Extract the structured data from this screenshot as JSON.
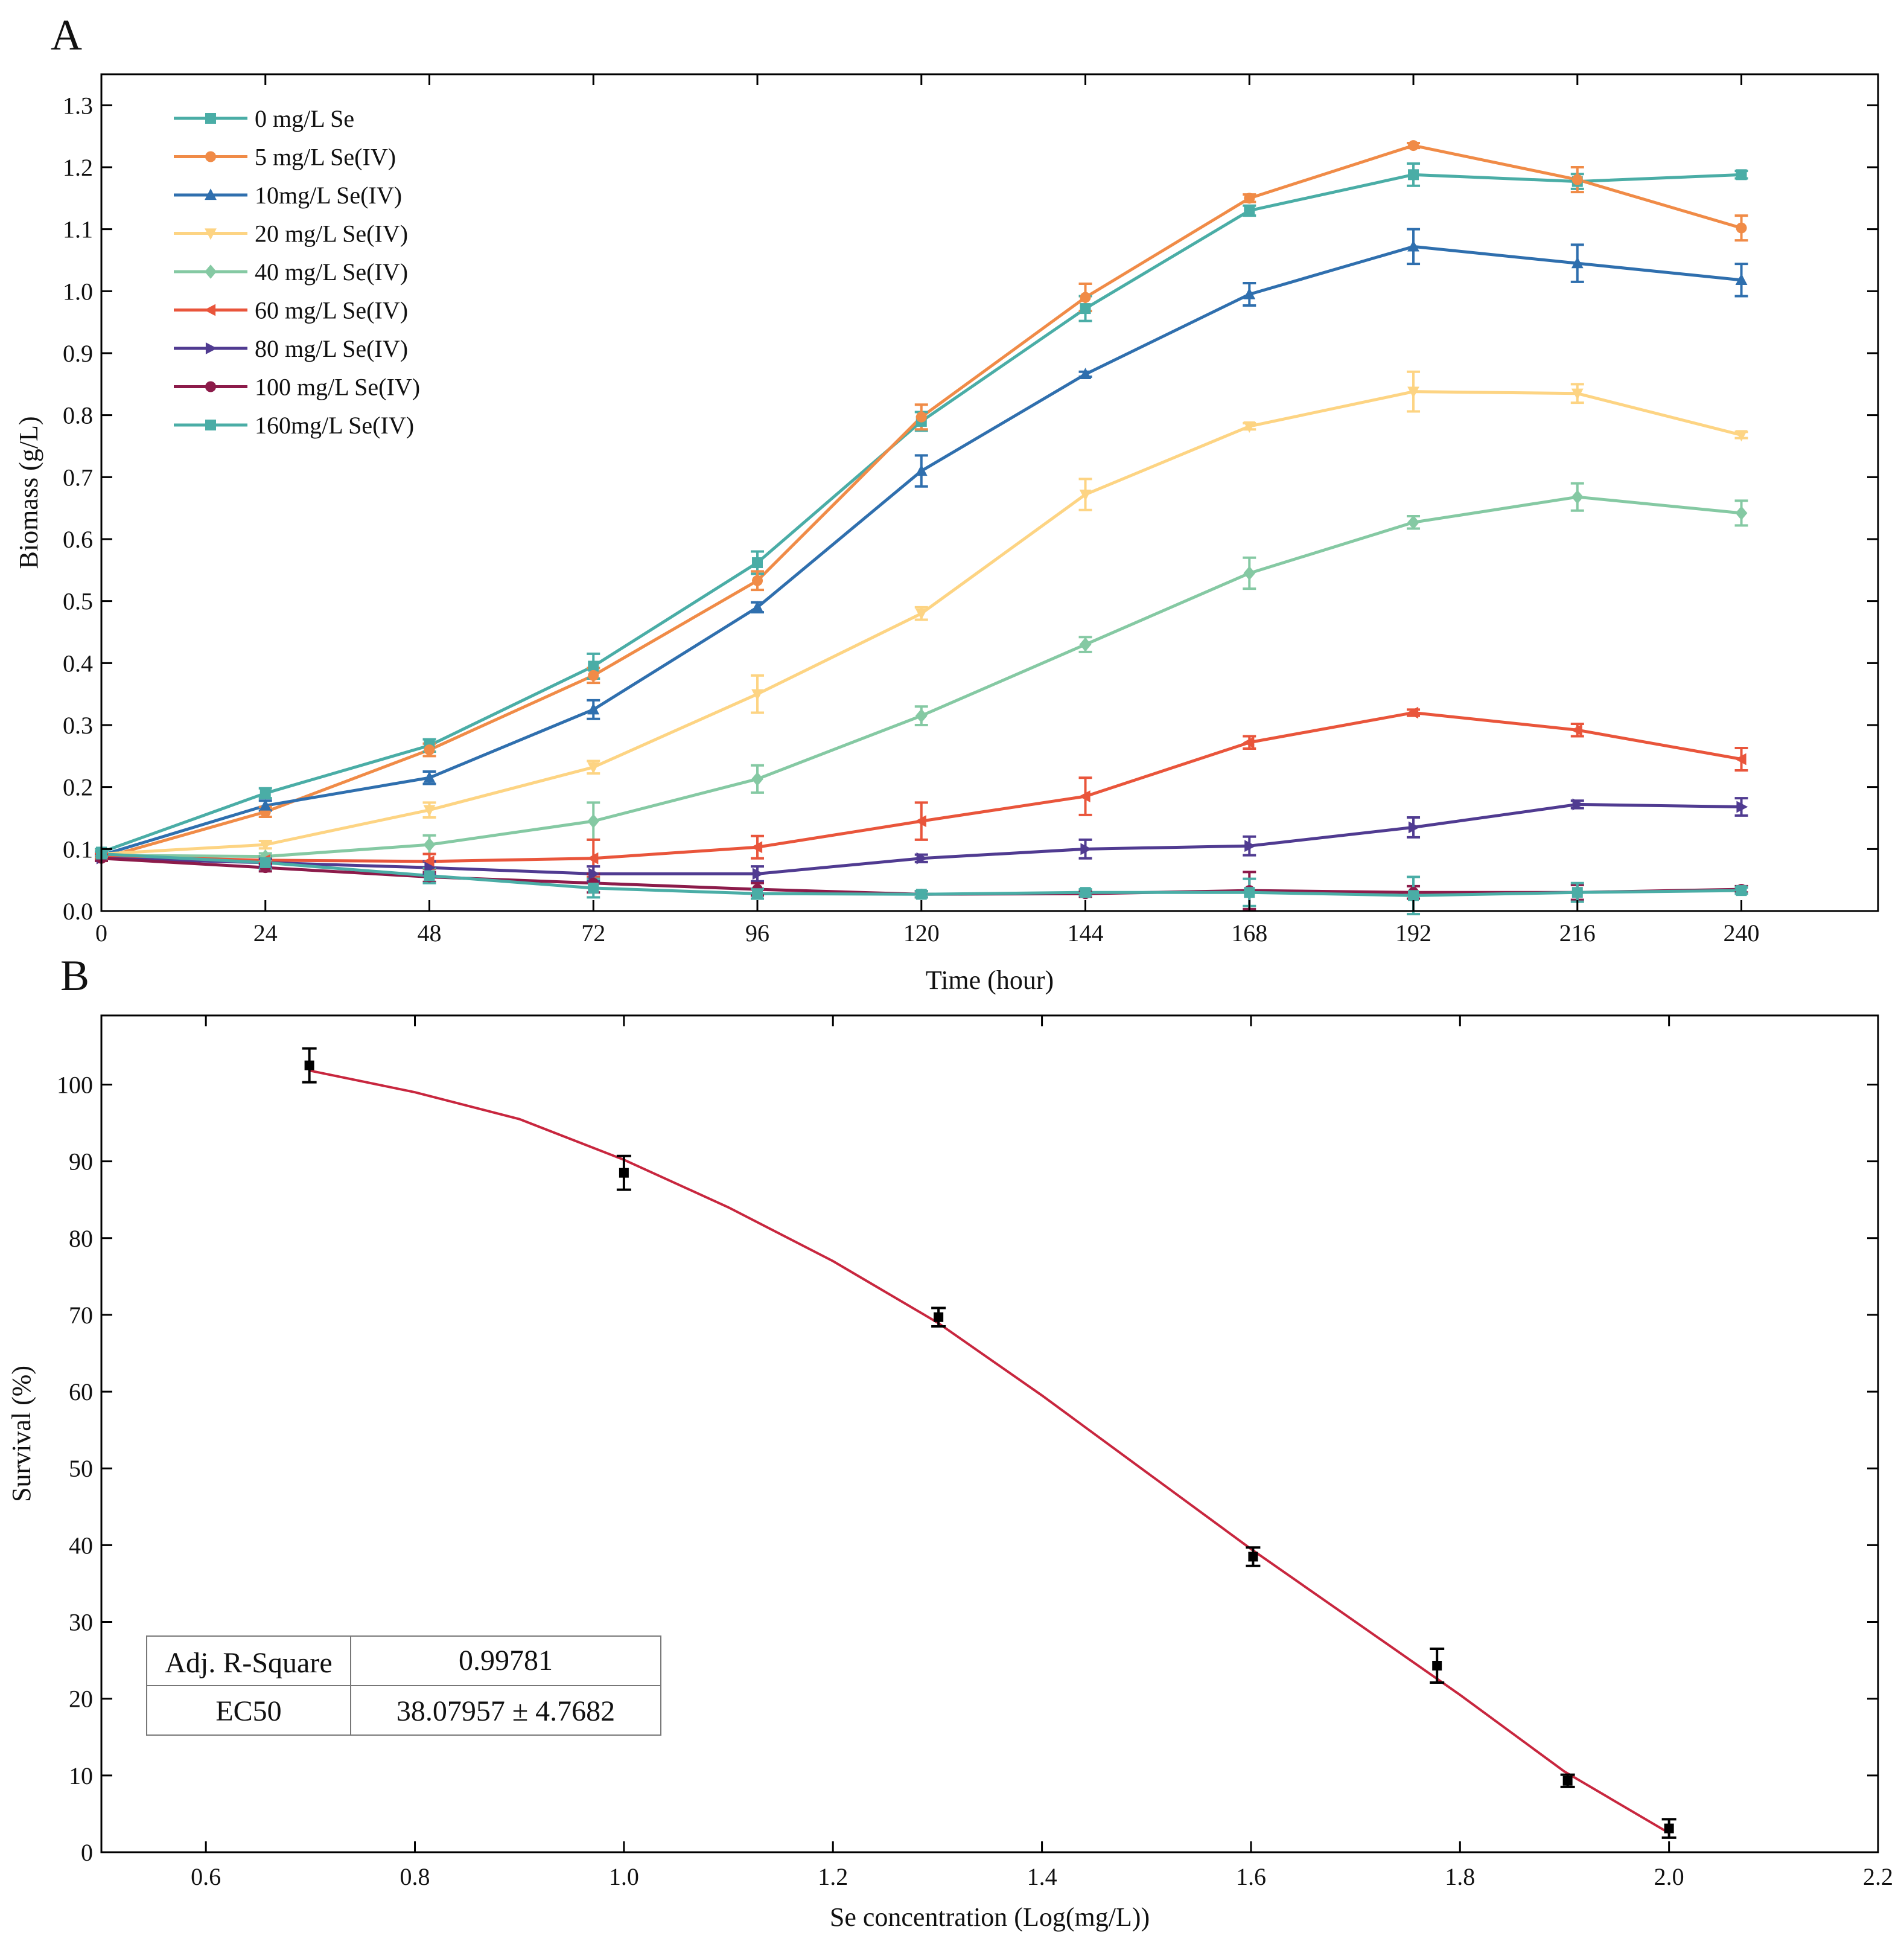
{
  "figure": {
    "panel_a_letter": "A",
    "panel_b_letter": "B"
  },
  "chart_data": [
    {
      "type": "line",
      "panel": "A",
      "xlabel": "Time (hour)",
      "ylabel": "Biomass (g/L)",
      "xlim": [
        0,
        260
      ],
      "ylim": [
        0,
        1.35
      ],
      "xticks": [
        0,
        24,
        48,
        72,
        96,
        120,
        144,
        168,
        192,
        216,
        240
      ],
      "xtick_labels": [
        "0",
        "24",
        "48",
        "72",
        "96",
        "120",
        "144",
        "168",
        "192",
        "216",
        "240"
      ],
      "yticks": [
        0,
        0.1,
        0.2,
        0.3,
        0.4,
        0.5,
        0.6,
        0.7,
        0.8,
        0.9,
        1.0,
        1.1,
        1.2,
        1.3
      ],
      "ytick_labels": [
        "0.0",
        "0.1",
        "0.2",
        "0.3",
        "0.4",
        "0.5",
        "0.6",
        "0.7",
        "0.8",
        "0.9",
        "1.0",
        "1.1",
        "1.2",
        "1.3"
      ],
      "legend_position": "top-left",
      "grid": false,
      "x": [
        0,
        24,
        48,
        72,
        96,
        120,
        144,
        168,
        192,
        216,
        240
      ],
      "series": [
        {
          "name": "0 mg/L Se",
          "color": "#4aada6",
          "marker": "square",
          "values": [
            0.095,
            0.19,
            0.267,
            0.395,
            0.562,
            0.79,
            0.972,
            1.13,
            1.188,
            1.177,
            1.188
          ],
          "errors": [
            0.005,
            0.008,
            0.01,
            0.02,
            0.018,
            0.015,
            0.02,
            0.008,
            0.018,
            0.012,
            0.006
          ]
        },
        {
          "name": "5 mg/L Se(IV)",
          "color": "#f08b47",
          "marker": "circle",
          "values": [
            0.085,
            0.16,
            0.26,
            0.38,
            0.533,
            0.797,
            0.99,
            1.15,
            1.235,
            1.18,
            1.102
          ],
          "errors": [
            0.004,
            0.008,
            0.01,
            0.012,
            0.015,
            0.02,
            0.022,
            0.006,
            0.004,
            0.02,
            0.02
          ]
        },
        {
          "name": "10mg/L Se(IV)",
          "color": "#2f6fae",
          "marker": "triangle-up",
          "values": [
            0.09,
            0.17,
            0.215,
            0.325,
            0.49,
            0.71,
            0.866,
            0.995,
            1.072,
            1.045,
            1.018
          ],
          "errors": [
            0.004,
            0.008,
            0.01,
            0.015,
            0.008,
            0.025,
            0.004,
            0.018,
            0.028,
            0.03,
            0.026
          ]
        },
        {
          "name": "20 mg/L Se(IV)",
          "color": "#fdd483",
          "marker": "triangle-down",
          "values": [
            0.092,
            0.107,
            0.163,
            0.232,
            0.35,
            0.48,
            0.672,
            0.782,
            0.838,
            0.835,
            0.768
          ],
          "errors": [
            0.004,
            0.006,
            0.012,
            0.01,
            0.03,
            0.01,
            0.025,
            0.005,
            0.032,
            0.015,
            0.005
          ]
        },
        {
          "name": "40 mg/L Se(IV)",
          "color": "#85c9a3",
          "marker": "diamond",
          "values": [
            0.09,
            0.088,
            0.107,
            0.145,
            0.213,
            0.315,
            0.43,
            0.545,
            0.627,
            0.668,
            0.642
          ],
          "errors": [
            0.004,
            0.005,
            0.015,
            0.03,
            0.022,
            0.015,
            0.012,
            0.025,
            0.01,
            0.022,
            0.02
          ]
        },
        {
          "name": "60 mg/L Se(IV)",
          "color": "#e9553b",
          "marker": "triangle-left",
          "values": [
            0.088,
            0.082,
            0.08,
            0.085,
            0.103,
            0.145,
            0.185,
            0.272,
            0.32,
            0.292,
            0.245
          ],
          "errors": [
            0.004,
            0.005,
            0.012,
            0.03,
            0.018,
            0.03,
            0.03,
            0.01,
            0.005,
            0.01,
            0.018
          ]
        },
        {
          "name": "80 mg/L Se(IV)",
          "color": "#503b91",
          "marker": "triangle-right",
          "values": [
            0.085,
            0.078,
            0.07,
            0.06,
            0.06,
            0.085,
            0.1,
            0.105,
            0.135,
            0.172,
            0.168
          ],
          "errors": [
            0.004,
            0.006,
            0.01,
            0.012,
            0.012,
            0.006,
            0.015,
            0.015,
            0.016,
            0.006,
            0.014
          ]
        },
        {
          "name": "100 mg/L Se(IV)",
          "color": "#8c1b4a",
          "marker": "circle",
          "values": [
            0.085,
            0.07,
            0.055,
            0.045,
            0.035,
            0.027,
            0.028,
            0.033,
            0.03,
            0.03,
            0.035
          ],
          "errors": [
            0.004,
            0.006,
            0.008,
            0.015,
            0.01,
            0.005,
            0.005,
            0.03,
            0.01,
            0.012,
            0.005
          ]
        },
        {
          "name": "160mg/L Se(IV)",
          "color": "#4aada6",
          "marker": "square",
          "values": [
            0.092,
            0.078,
            0.057,
            0.037,
            0.028,
            0.027,
            0.03,
            0.03,
            0.025,
            0.03,
            0.033
          ],
          "errors": [
            0.004,
            0.01,
            0.012,
            0.015,
            0.008,
            0.005,
            0.005,
            0.022,
            0.03,
            0.015,
            0.005
          ]
        }
      ]
    },
    {
      "type": "scatter",
      "panel": "B",
      "xlabel": "Se concentration (Log(mg/L))",
      "ylabel": "Survival (%)",
      "xlim": [
        0.5,
        2.2
      ],
      "ylim": [
        0,
        109
      ],
      "xticks": [
        0.6,
        0.8,
        1.0,
        1.2,
        1.4,
        1.6,
        1.8,
        2.0,
        2.2
      ],
      "xtick_labels": [
        "0.6",
        "0.8",
        "1.0",
        "1.2",
        "1.4",
        "1.6",
        "1.8",
        "2.0",
        "2.2"
      ],
      "yticks": [
        0,
        10,
        20,
        30,
        40,
        50,
        60,
        70,
        80,
        90,
        100
      ],
      "ytick_labels": [
        "0",
        "10",
        "20",
        "30",
        "40",
        "50",
        "60",
        "70",
        "80",
        "90",
        "100"
      ],
      "grid": false,
      "points": [
        {
          "x": 0.699,
          "y": 102.5,
          "err": 2.2
        },
        {
          "x": 1.0,
          "y": 88.5,
          "err": 2.2
        },
        {
          "x": 1.301,
          "y": 69.7,
          "err": 1.2
        },
        {
          "x": 1.602,
          "y": 38.5,
          "err": 1.2
        },
        {
          "x": 1.778,
          "y": 24.3,
          "err": 2.2
        },
        {
          "x": 1.903,
          "y": 9.3,
          "err": 0.8
        },
        {
          "x": 2.0,
          "y": 3.1,
          "err": 1.2
        }
      ],
      "point_color": "#000000",
      "fit": {
        "name": "dose-response fit",
        "color": "#c8263e",
        "x": [
          0.7,
          0.8,
          0.9,
          1.0,
          1.1,
          1.2,
          1.3,
          1.4,
          1.5,
          1.6,
          1.7,
          1.8,
          1.9,
          2.0
        ],
        "y": [
          101.8,
          99.0,
          95.5,
          90.2,
          84.0,
          77.0,
          69.0,
          59.5,
          49.5,
          39.5,
          30.0,
          20.5,
          10.5,
          2.5
        ]
      },
      "table": {
        "rows": [
          {
            "label": "Adj. R-Square",
            "value": "0.99781"
          },
          {
            "label": "EC50",
            "value": "38.07957 ± 4.7682"
          }
        ]
      }
    }
  ]
}
